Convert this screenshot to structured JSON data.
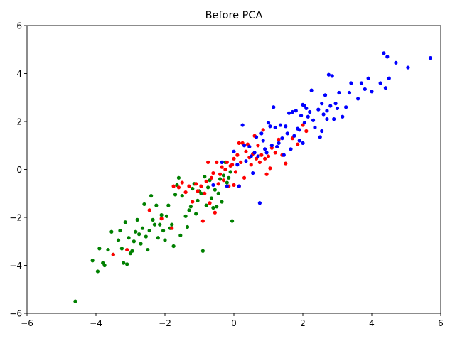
{
  "chart_data": {
    "type": "scatter",
    "title": "Before PCA",
    "xlabel": "",
    "ylabel": "",
    "xlim": [
      -6,
      6
    ],
    "ylim": [
      -6,
      6
    ],
    "xticks": [
      -6,
      -4,
      -2,
      0,
      2,
      4,
      6
    ],
    "yticks": [
      -6,
      -4,
      -2,
      0,
      2,
      4,
      6
    ],
    "grid": false,
    "legend": "none",
    "series": [
      {
        "color": "#008000",
        "points": [
          [
            -4.6,
            -5.5
          ],
          [
            -4.1,
            -3.8
          ],
          [
            -3.95,
            -4.25
          ],
          [
            -3.9,
            -3.3
          ],
          [
            -3.8,
            -3.9
          ],
          [
            -3.75,
            -4.0
          ],
          [
            -3.65,
            -3.35
          ],
          [
            -3.55,
            -2.6
          ],
          [
            -3.5,
            -3.55
          ],
          [
            -3.35,
            -2.95
          ],
          [
            -3.3,
            -2.55
          ],
          [
            -3.25,
            -3.3
          ],
          [
            -3.2,
            -3.9
          ],
          [
            -3.15,
            -2.2
          ],
          [
            -3.1,
            -3.95
          ],
          [
            -3.05,
            -2.85
          ],
          [
            -3.0,
            -3.5
          ],
          [
            -2.95,
            -3.4
          ],
          [
            -2.9,
            -3.0
          ],
          [
            -2.85,
            -2.6
          ],
          [
            -2.8,
            -2.1
          ],
          [
            -2.75,
            -2.7
          ],
          [
            -2.7,
            -3.1
          ],
          [
            -2.65,
            -2.45
          ],
          [
            -2.6,
            -1.45
          ],
          [
            -2.55,
            -2.8
          ],
          [
            -2.5,
            -3.35
          ],
          [
            -2.45,
            -2.55
          ],
          [
            -2.4,
            -1.1
          ],
          [
            -2.35,
            -2.1
          ],
          [
            -2.3,
            -2.3
          ],
          [
            -2.25,
            -1.5
          ],
          [
            -2.2,
            -2.85
          ],
          [
            -2.15,
            -2.3
          ],
          [
            -2.1,
            -1.9
          ],
          [
            -2.05,
            -2.55
          ],
          [
            -2.0,
            -2.95
          ],
          [
            -1.95,
            -1.95
          ],
          [
            -1.9,
            -1.5
          ],
          [
            -1.85,
            -2.45
          ],
          [
            -1.8,
            -2.3
          ],
          [
            -1.75,
            -3.2
          ],
          [
            -1.7,
            -1.05
          ],
          [
            -1.65,
            -0.65
          ],
          [
            -1.6,
            -0.35
          ],
          [
            -1.55,
            -2.75
          ],
          [
            -1.5,
            -1.1
          ],
          [
            -1.4,
            -1.95
          ],
          [
            -1.35,
            -2.4
          ],
          [
            -1.3,
            -1.7
          ],
          [
            -1.25,
            -1.55
          ],
          [
            -1.2,
            -0.8
          ],
          [
            -1.15,
            -0.6
          ],
          [
            -1.1,
            -1.85
          ],
          [
            -1.05,
            -1.3
          ],
          [
            -1.0,
            -0.9
          ],
          [
            -0.95,
            -1.0
          ],
          [
            -0.9,
            -3.4
          ],
          [
            -0.85,
            -0.3
          ],
          [
            -0.8,
            -1.5
          ],
          [
            -0.75,
            -0.75
          ],
          [
            -0.7,
            -0.45
          ],
          [
            -0.65,
            -1.2
          ],
          [
            -0.6,
            -1.6
          ],
          [
            -0.55,
            -0.85
          ],
          [
            -0.5,
            -1.55
          ],
          [
            -0.45,
            -1.0
          ],
          [
            -0.4,
            -0.4
          ],
          [
            -0.35,
            -1.35
          ],
          [
            -0.3,
            -0.25
          ],
          [
            -0.25,
            0.3
          ],
          [
            -0.2,
            -0.55
          ],
          [
            -0.15,
            -0.35
          ],
          [
            -0.1,
            -0.1
          ],
          [
            -0.05,
            -2.15
          ]
        ]
      },
      {
        "color": "#ff0000",
        "points": [
          [
            -3.5,
            -3.55
          ],
          [
            -3.1,
            -3.35
          ],
          [
            -2.45,
            -1.7
          ],
          [
            -2.1,
            -2.05
          ],
          [
            -1.8,
            -2.45
          ],
          [
            -1.75,
            -0.7
          ],
          [
            -1.6,
            -0.75
          ],
          [
            -1.5,
            -0.55
          ],
          [
            -1.4,
            -0.95
          ],
          [
            -1.3,
            -0.7
          ],
          [
            -1.2,
            -1.35
          ],
          [
            -1.1,
            -0.6
          ],
          [
            -1.05,
            -0.9
          ],
          [
            -0.95,
            -0.7
          ],
          [
            -0.9,
            -2.15
          ],
          [
            -0.85,
            -1.0
          ],
          [
            -0.8,
            -0.5
          ],
          [
            -0.75,
            0.3
          ],
          [
            -0.7,
            -1.4
          ],
          [
            -0.65,
            -0.35
          ],
          [
            -0.6,
            -0.15
          ],
          [
            -0.55,
            -1.8
          ],
          [
            -0.5,
            0.3
          ],
          [
            -0.45,
            -0.6
          ],
          [
            -0.4,
            -0.2
          ],
          [
            -0.35,
            0.1
          ],
          [
            -0.3,
            -0.45
          ],
          [
            -0.25,
            0.0
          ],
          [
            -0.2,
            0.3
          ],
          [
            -0.15,
            -0.7
          ],
          [
            -0.1,
            0.15
          ],
          [
            -0.05,
            0.2
          ],
          [
            0.0,
            0.45
          ],
          [
            0.05,
            -0.1
          ],
          [
            0.1,
            0.6
          ],
          [
            0.15,
            -0.7
          ],
          [
            0.2,
            0.3
          ],
          [
            0.25,
            1.1
          ],
          [
            0.3,
            -0.35
          ],
          [
            0.35,
            0.75
          ],
          [
            0.4,
            1.05
          ],
          [
            0.45,
            0.5
          ],
          [
            0.5,
            0.2
          ],
          [
            0.55,
            0.65
          ],
          [
            0.6,
            1.4
          ],
          [
            0.65,
            0.45
          ],
          [
            0.7,
            1.0
          ],
          [
            0.75,
            0.3
          ],
          [
            0.8,
            0.6
          ],
          [
            0.85,
            1.65
          ],
          [
            0.9,
            0.45
          ],
          [
            0.95,
            -0.2
          ],
          [
            1.0,
            0.55
          ],
          [
            1.05,
            0.05
          ],
          [
            1.1,
            0.9
          ],
          [
            1.2,
            0.7
          ],
          [
            1.3,
            1.25
          ],
          [
            1.4,
            0.6
          ],
          [
            1.5,
            0.25
          ],
          [
            1.7,
            1.3
          ],
          [
            1.85,
            1.05
          ],
          [
            2.0,
            1.85
          ],
          [
            2.1,
            1.6
          ],
          [
            0.0,
            -0.65
          ],
          [
            0.15,
            1.1
          ]
        ]
      },
      {
        "color": "#0000ff",
        "points": [
          [
            -0.6,
            -0.65
          ],
          [
            -0.35,
            0.3
          ],
          [
            -0.2,
            -0.7
          ],
          [
            0.0,
            0.75
          ],
          [
            0.1,
            0.2
          ],
          [
            0.15,
            -0.7
          ],
          [
            0.25,
            1.85
          ],
          [
            0.3,
            1.0
          ],
          [
            0.35,
            0.35
          ],
          [
            0.45,
            0.95
          ],
          [
            0.5,
            0.55
          ],
          [
            0.55,
            -0.15
          ],
          [
            0.6,
            0.7
          ],
          [
            0.65,
            1.35
          ],
          [
            0.7,
            0.55
          ],
          [
            0.75,
            -1.4
          ],
          [
            0.8,
            1.5
          ],
          [
            0.85,
            1.2
          ],
          [
            0.9,
            0.85
          ],
          [
            0.95,
            0.7
          ],
          [
            1.0,
            1.95
          ],
          [
            1.05,
            1.8
          ],
          [
            1.1,
            1.0
          ],
          [
            1.15,
            2.6
          ],
          [
            1.2,
            1.75
          ],
          [
            1.25,
            0.95
          ],
          [
            1.3,
            1.1
          ],
          [
            1.35,
            1.85
          ],
          [
            1.4,
            1.3
          ],
          [
            1.45,
            0.6
          ],
          [
            1.5,
            1.8
          ],
          [
            1.55,
            1.5
          ],
          [
            1.6,
            2.35
          ],
          [
            1.65,
            0.85
          ],
          [
            1.7,
            2.4
          ],
          [
            1.75,
            1.4
          ],
          [
            1.8,
            2.45
          ],
          [
            1.85,
            1.7
          ],
          [
            1.9,
            1.2
          ],
          [
            1.95,
            2.25
          ],
          [
            2.0,
            2.7
          ],
          [
            2.05,
            1.95
          ],
          [
            2.1,
            2.55
          ],
          [
            2.15,
            2.2
          ],
          [
            2.2,
            2.4
          ],
          [
            2.25,
            3.3
          ],
          [
            2.3,
            2.05
          ],
          [
            2.35,
            1.75
          ],
          [
            2.45,
            2.5
          ],
          [
            2.5,
            1.35
          ],
          [
            2.55,
            2.75
          ],
          [
            2.6,
            2.3
          ],
          [
            2.65,
            3.1
          ],
          [
            2.7,
            2.45
          ],
          [
            2.75,
            3.95
          ],
          [
            2.8,
            2.65
          ],
          [
            2.85,
            3.9
          ],
          [
            2.9,
            2.1
          ],
          [
            2.95,
            2.75
          ],
          [
            3.0,
            2.55
          ],
          [
            3.05,
            3.2
          ],
          [
            3.15,
            2.2
          ],
          [
            3.25,
            2.6
          ],
          [
            3.35,
            3.2
          ],
          [
            3.4,
            3.6
          ],
          [
            3.6,
            2.95
          ],
          [
            3.7,
            3.6
          ],
          [
            3.8,
            3.35
          ],
          [
            3.9,
            3.8
          ],
          [
            4.0,
            3.25
          ],
          [
            4.25,
            3.6
          ],
          [
            4.35,
            4.85
          ],
          [
            4.4,
            3.4
          ],
          [
            4.45,
            4.7
          ],
          [
            4.5,
            3.8
          ],
          [
            4.7,
            4.45
          ],
          [
            5.05,
            4.25
          ],
          [
            5.7,
            4.65
          ],
          [
            2.05,
            2.65
          ],
          [
            1.9,
            1.65
          ],
          [
            2.0,
            1.1
          ],
          [
            2.55,
            1.6
          ],
          [
            2.7,
            2.1
          ]
        ]
      }
    ]
  }
}
